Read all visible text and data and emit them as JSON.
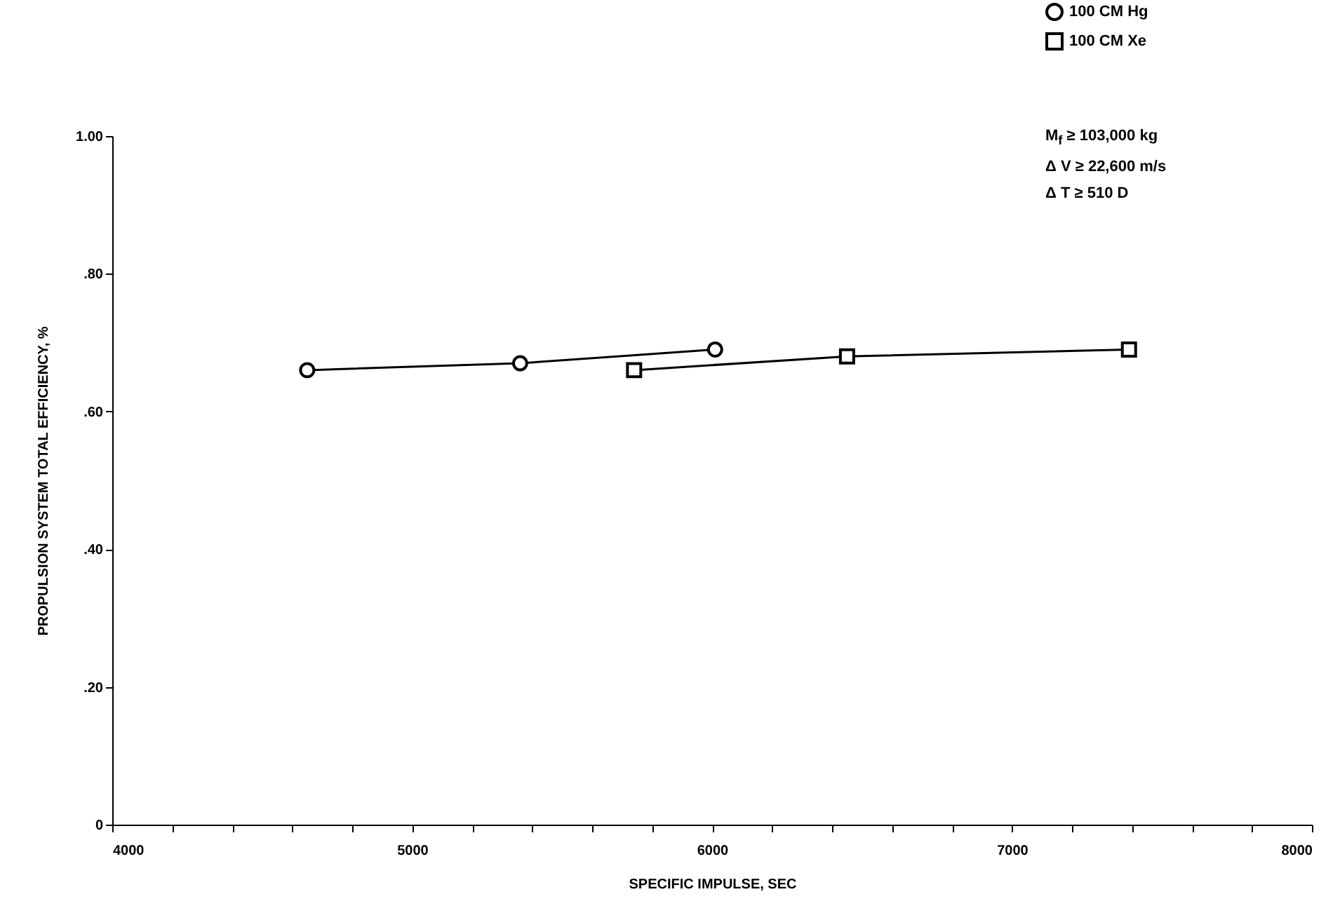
{
  "chart_data": {
    "type": "line",
    "xlabel": "SPECIFIC IMPULSE, SEC",
    "ylabel": "PROPULSION SYSTEM TOTAL EFFICIENCY, %",
    "annotations": [
      "M$_{f}$ ≥ 103,000 kg",
      "Δ V ≥ 22,600 m/s",
      "Δ T ≥ 510 D"
    ],
    "series": [
      {
        "name": "100 CM Hg",
        "color": "#000000",
        "marker": "circle",
        "x": [
          4650,
          5360,
          6010
        ],
        "values": [
          0.66,
          0.67,
          0.69
        ]
      },
      {
        "name": "100 CM Xe",
        "color": "#000000",
        "marker": "square",
        "x": [
          5740,
          6450,
          7390
        ],
        "values": [
          0.66,
          0.68,
          0.69
        ]
      }
    ],
    "xlim": [
      4000,
      8000
    ],
    "xticks": [
      4000,
      {
        "value": 4200,
        "label": null
      },
      {
        "value": 4400,
        "label": null
      },
      {
        "value": 4600,
        "label": null
      },
      {
        "value": 4800,
        "label": null
      },
      5000,
      {
        "value": 5200,
        "label": null
      },
      {
        "value": 5400,
        "label": null
      },
      {
        "value": 5600,
        "label": null
      },
      {
        "value": 5800,
        "label": null
      },
      6000,
      {
        "value": 6200,
        "label": null
      },
      {
        "value": 6400,
        "label": null
      },
      {
        "value": 6600,
        "label": null
      },
      {
        "value": 6800,
        "label": null
      },
      7000,
      {
        "value": 7200,
        "label": null
      },
      {
        "value": 7400,
        "label": null
      },
      {
        "value": 7600,
        "label": null
      },
      {
        "value": 7800,
        "label": null
      },
      8000
    ],
    "ylim": [
      0,
      1
    ],
    "yticks": [
      0,
      {
        "value": 0.2,
        "label": ".20"
      },
      {
        "value": 0.4,
        "label": ".40"
      },
      {
        "value": 0.6,
        "label": ".60"
      },
      {
        "value": 0.8,
        "label": ".80"
      },
      {
        "value": 1,
        "label": "1.00"
      }
    ],
    "grid": false,
    "legend": "top right",
    "line_style": "solid"
  }
}
